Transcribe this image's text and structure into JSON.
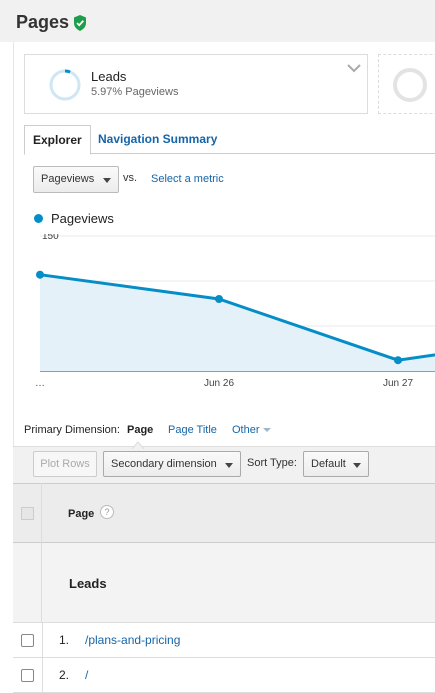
{
  "header": {
    "title": "Pages",
    "verified_icon": "verified-shield-icon"
  },
  "goal": {
    "name": "Leads",
    "subtitle": "5.97% Pageviews",
    "conversion_fraction": 0.0597
  },
  "tabs": [
    {
      "label": "Explorer",
      "active": true
    },
    {
      "label": "Navigation Summary",
      "active": false
    }
  ],
  "metric": {
    "selected": "Pageviews",
    "vs_label": "vs.",
    "select_metric_link": "Select a metric"
  },
  "chart_data": {
    "type": "area",
    "series": [
      {
        "name": "Pageviews",
        "color": "#058dc7",
        "values": [
          107,
          80,
          12,
          18
        ]
      }
    ],
    "x": [
      "…",
      "Jun 26",
      "Jun 27",
      ""
    ],
    "x_labels": [
      "…",
      "Jun 26",
      "Jun 27"
    ],
    "y_ticks": [
      "150",
      "100",
      "50"
    ],
    "ylim": [
      0,
      150
    ],
    "grid": true
  },
  "primary_dimension": {
    "label": "Primary Dimension:",
    "options": [
      "Page",
      "Page Title",
      "Other"
    ],
    "active": "Page"
  },
  "toolbar": {
    "plot_rows": "Plot Rows",
    "secondary_dimension": "Secondary dimension",
    "sort_label": "Sort Type:",
    "sort_value": "Default"
  },
  "table": {
    "column_header": "Page",
    "help_icon": "?",
    "group_label": "Leads",
    "rows": [
      {
        "num": "1.",
        "page": "/plans-and-pricing"
      },
      {
        "num": "2.",
        "page": "/"
      }
    ]
  }
}
